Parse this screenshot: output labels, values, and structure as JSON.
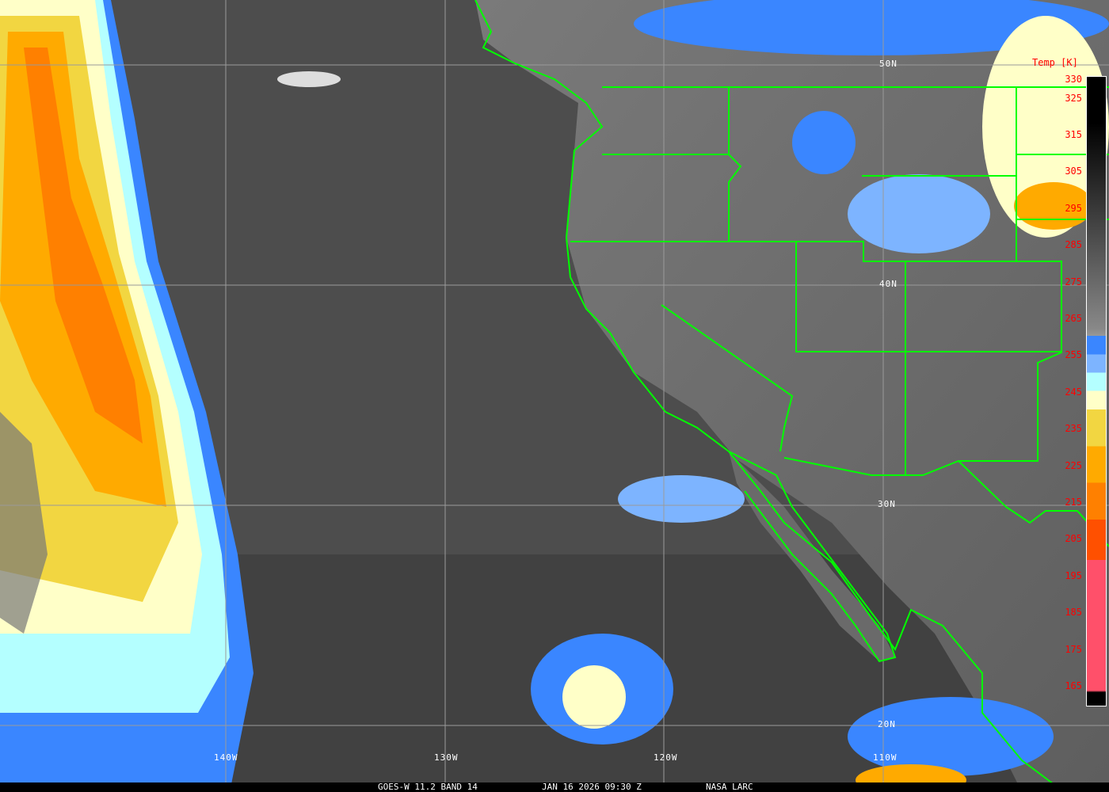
{
  "caption": {
    "product": "GOES-W 11.2 BAND 14",
    "datetime": "JAN 16 2026 09:30 Z",
    "credit": "NASA LARC"
  },
  "latitude_labels": [
    "50N",
    "40N",
    "30N",
    "20N"
  ],
  "longitude_labels": [
    "140W",
    "130W",
    "120W",
    "110W"
  ],
  "legend": {
    "title": "Temp [K]",
    "ticks": [
      "330",
      "325",
      "315",
      "305",
      "295",
      "285",
      "275",
      "265",
      "255",
      "245",
      "235",
      "225",
      "215",
      "205",
      "195",
      "185",
      "175",
      "165"
    ],
    "colors": {
      "blue": "#3a86ff",
      "light_blue": "#7db4ff",
      "light_cyan": "#b4ffff",
      "cream": "#ffffc8",
      "yellow": "#f2d641",
      "amber": "#ffaa00",
      "orange": "#ff8000",
      "red_orange": "#ff5000",
      "pink": "#ff506a",
      "borders": "#00ff00"
    }
  }
}
